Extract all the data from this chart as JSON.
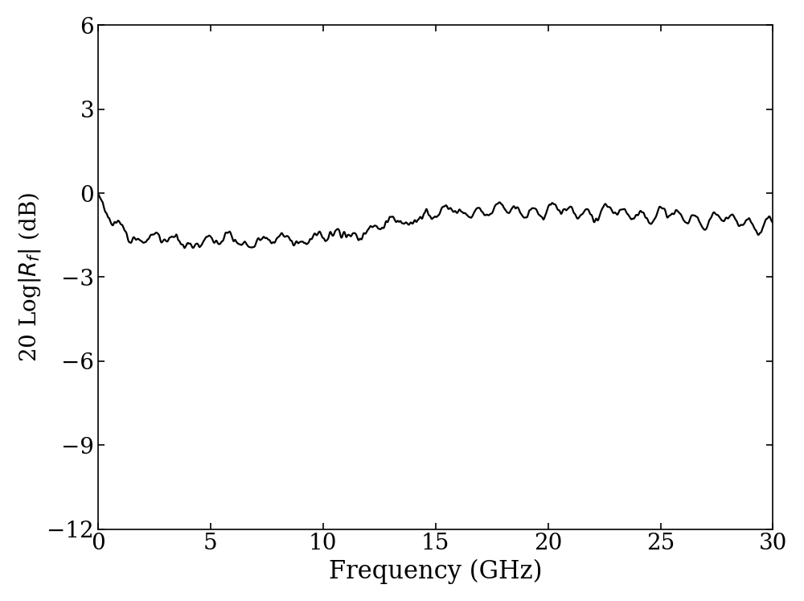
{
  "title": "",
  "xlabel": "Frequency (GHz)",
  "ylabel": "20 Log|$R_f$| (dB)",
  "xlim": [
    0,
    30
  ],
  "ylim": [
    -12,
    6
  ],
  "xticks": [
    0,
    5,
    10,
    15,
    20,
    25,
    30
  ],
  "yticks": [
    -12,
    -9,
    -6,
    -3,
    0,
    3,
    6
  ],
  "line_color": "#000000",
  "line_width": 1.6,
  "background_color": "#ffffff",
  "xlabel_fontsize": 22,
  "ylabel_fontsize": 20,
  "tick_fontsize": 20,
  "seed": 7
}
